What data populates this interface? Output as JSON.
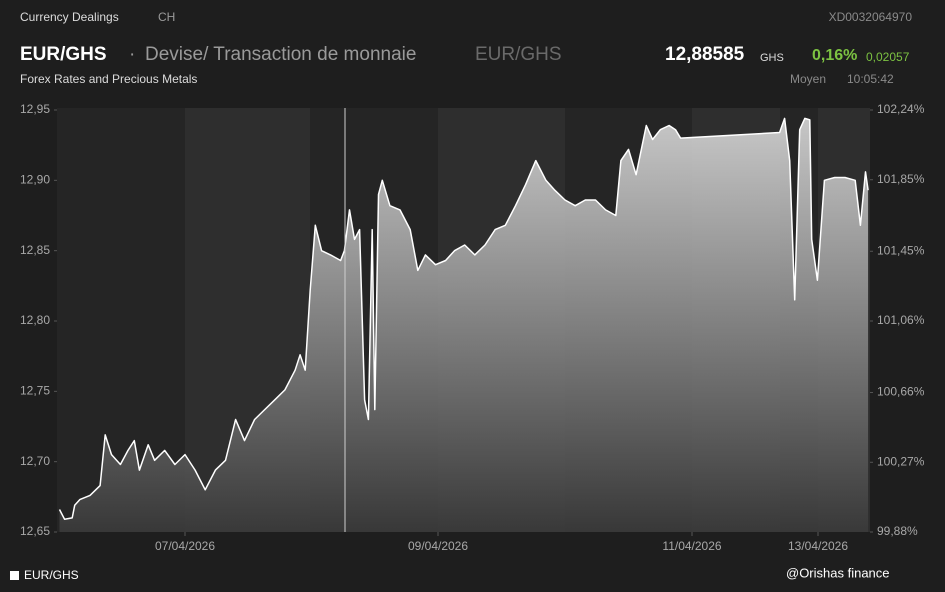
{
  "header": {
    "section": "Currency Dealings",
    "country": "CH",
    "isin": "XD0032064970",
    "symbol": "EUR/GHS",
    "separator": "·",
    "description": "Devise/ Transaction de monnaie",
    "symbol_secondary": "EUR/GHS",
    "price": "12,88585",
    "currency": "GHS",
    "change_percent": "0,16%",
    "change": "0,02057",
    "category": "Forex Rates and Precious Metals",
    "price_type": "Moyen",
    "time": "10:05:42"
  },
  "footer": {
    "credit": "@Orishas finance"
  },
  "chart_data": {
    "type": "area",
    "series": [
      {
        "name": "EUR/GHS",
        "color": "#ffffff",
        "x": [
          6.01,
          6.05,
          6.11,
          6.13,
          6.17,
          6.25,
          6.33,
          6.37,
          6.42,
          6.49,
          6.55,
          6.6,
          6.64,
          6.71,
          6.76,
          6.84,
          6.92,
          7.0,
          7.08,
          7.16,
          7.24,
          7.32,
          7.4,
          7.47,
          7.55,
          7.63,
          7.71,
          7.79,
          7.87,
          7.91,
          7.95,
          7.99,
          8.03,
          8.08,
          8.15,
          8.23,
          8.26,
          8.3,
          8.34,
          8.38,
          8.42,
          8.45,
          8.48,
          8.5,
          8.53,
          8.56,
          8.62,
          8.7,
          8.78,
          8.84,
          8.9,
          8.98,
          9.06,
          9.13,
          9.21,
          9.29,
          9.37,
          9.45,
          9.53,
          9.61,
          9.69,
          9.77,
          9.85,
          9.92,
          10.0,
          10.08,
          10.16,
          10.24,
          10.32,
          10.4,
          10.44,
          10.5,
          10.56,
          10.64,
          10.69,
          10.75,
          10.82,
          10.87,
          10.91,
          12.39,
          12.47,
          12.55,
          12.63,
          12.71,
          12.79,
          12.87,
          12.9,
          12.99,
          13.1,
          13.26,
          13.42,
          13.58,
          13.66,
          13.74,
          13.78
        ],
        "values": [
          12.666,
          12.659,
          12.66,
          12.669,
          12.673,
          12.676,
          12.683,
          12.719,
          12.705,
          12.698,
          12.708,
          12.715,
          12.694,
          12.712,
          12.701,
          12.708,
          12.698,
          12.705,
          12.694,
          12.68,
          12.694,
          12.701,
          12.73,
          12.715,
          12.73,
          12.737,
          12.744,
          12.751,
          12.765,
          12.776,
          12.765,
          12.822,
          12.868,
          12.85,
          12.847,
          12.843,
          12.85,
          12.879,
          12.858,
          12.865,
          12.744,
          12.73,
          12.865,
          12.737,
          12.89,
          12.9,
          12.882,
          12.879,
          12.865,
          12.836,
          12.847,
          12.84,
          12.843,
          12.85,
          12.854,
          12.847,
          12.854,
          12.865,
          12.868,
          12.882,
          12.897,
          12.914,
          12.9,
          12.893,
          12.886,
          12.882,
          12.886,
          12.886,
          12.879,
          12.875,
          12.914,
          12.922,
          12.904,
          12.939,
          12.929,
          12.936,
          12.939,
          12.936,
          12.93,
          12.934,
          12.944,
          12.914,
          12.815,
          12.936,
          12.944,
          12.943,
          12.858,
          12.829,
          12.9,
          12.902,
          12.902,
          12.9,
          12.868,
          12.906,
          12.893
        ]
      }
    ],
    "xlim": [
      5.99,
      13.81
    ],
    "xticks": [
      {
        "value": 7,
        "label": "07/04/2026"
      },
      {
        "value": 9,
        "label": "09/04/2026"
      },
      {
        "value": 11,
        "label": "11/04/2026"
      },
      {
        "value": 13,
        "label": "13/04/2026"
      }
    ],
    "ylim": [
      12.65,
      12.95
    ],
    "yticks": [
      {
        "value": 12.95,
        "label": "12,95"
      },
      {
        "value": 12.9,
        "label": "12,90"
      },
      {
        "value": 12.85,
        "label": "12,85"
      },
      {
        "value": 12.8,
        "label": "12,80"
      },
      {
        "value": 12.75,
        "label": "12,75"
      },
      {
        "value": 12.7,
        "label": "12,70"
      },
      {
        "value": 12.65,
        "label": "12,65"
      }
    ],
    "y2lim": [
      99.88,
      102.24
    ],
    "y2ticks": [
      {
        "value": 102.24,
        "label": "102,24%"
      },
      {
        "value": 101.85,
        "label": "101,85%"
      },
      {
        "value": 101.45,
        "label": "101,45%"
      },
      {
        "value": 101.06,
        "label": "101,06%"
      },
      {
        "value": 100.66,
        "label": "100,66%"
      },
      {
        "value": 100.27,
        "label": "100,27%"
      },
      {
        "value": 99.88,
        "label": "99,88%"
      }
    ],
    "legend": "bottom-left"
  }
}
